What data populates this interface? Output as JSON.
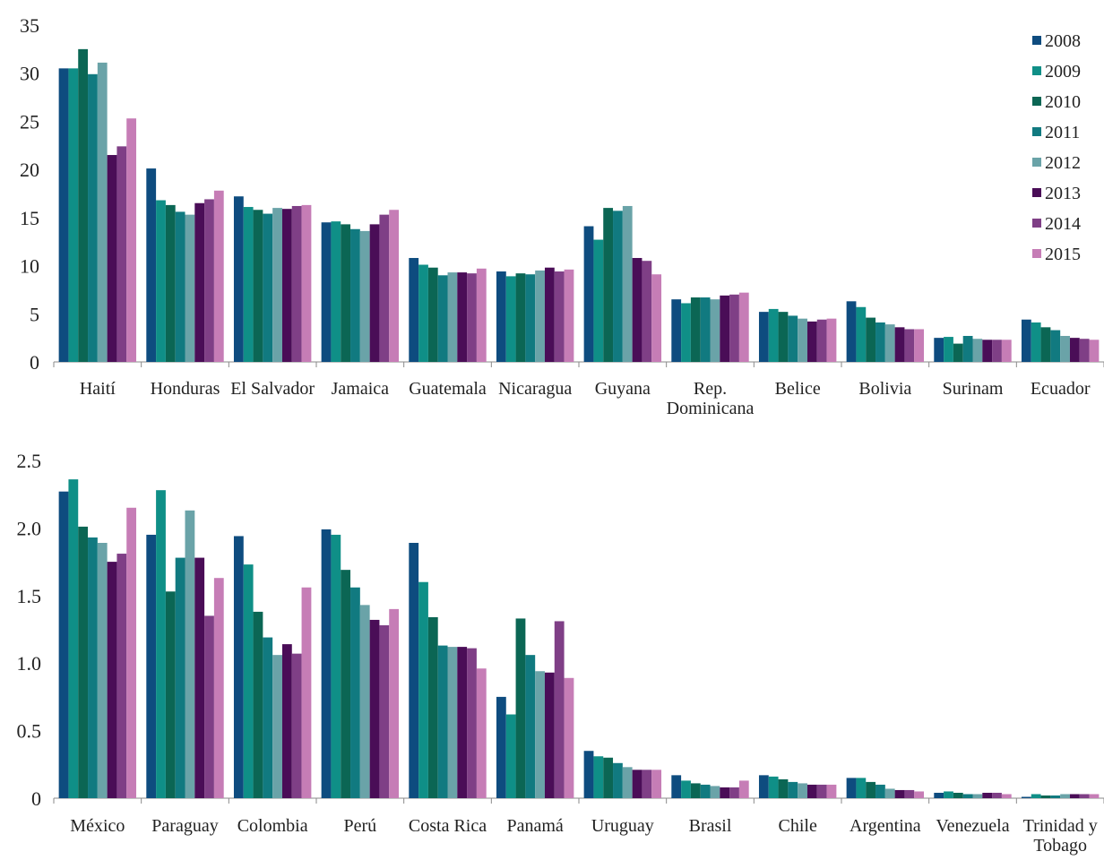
{
  "colors": [
    "#0e4c7f",
    "#0f8f87",
    "#0b6654",
    "#117a80",
    "#6aa3a8",
    "#4a0d57",
    "#7f3f86",
    "#c67db6"
  ],
  "chart_data": [
    {
      "type": "bar",
      "title": "",
      "xlabel": "",
      "ylabel": "",
      "ylim": [
        0,
        35
      ],
      "yticks": [
        "0",
        "5",
        "10",
        "15",
        "20",
        "25",
        "30",
        "35"
      ],
      "legend_position": "top-right",
      "categories": [
        [
          "Haití"
        ],
        [
          "Honduras"
        ],
        [
          "El Salvador"
        ],
        [
          "Jamaica"
        ],
        [
          "Guatemala"
        ],
        [
          "Nicaragua"
        ],
        [
          "Guyana"
        ],
        [
          "Rep.",
          "Dominicana"
        ],
        [
          "Belice"
        ],
        [
          "Bolivia"
        ],
        [
          "Surinam"
        ],
        [
          "Ecuador"
        ]
      ],
      "series": [
        {
          "name": "2008",
          "values": [
            30.5,
            20.1,
            17.2,
            14.5,
            10.8,
            9.4,
            14.1,
            6.5,
            5.2,
            6.3,
            2.5,
            4.4
          ]
        },
        {
          "name": "2009",
          "values": [
            30.5,
            16.8,
            16.1,
            14.6,
            10.1,
            8.9,
            12.7,
            6.1,
            5.5,
            5.7,
            2.6,
            4.1
          ]
        },
        {
          "name": "2010",
          "values": [
            32.5,
            16.3,
            15.8,
            14.3,
            9.8,
            9.2,
            16.0,
            6.7,
            5.2,
            4.6,
            1.9,
            3.6
          ]
        },
        {
          "name": "2011",
          "values": [
            29.9,
            15.6,
            15.4,
            13.8,
            9.0,
            9.1,
            15.7,
            6.7,
            4.8,
            4.1,
            2.7,
            3.3
          ]
        },
        {
          "name": "2012",
          "values": [
            31.1,
            15.3,
            16.0,
            13.6,
            9.3,
            9.5,
            16.2,
            6.5,
            4.5,
            3.9,
            2.4,
            2.7
          ]
        },
        {
          "name": "2013",
          "values": [
            21.5,
            16.5,
            15.9,
            14.3,
            9.3,
            9.8,
            10.8,
            6.9,
            4.2,
            3.6,
            2.3,
            2.5
          ]
        },
        {
          "name": "2014",
          "values": [
            22.4,
            16.9,
            16.2,
            15.3,
            9.2,
            9.4,
            10.5,
            7.0,
            4.4,
            3.4,
            2.3,
            2.4
          ]
        },
        {
          "name": "2015",
          "values": [
            25.3,
            17.8,
            16.3,
            15.8,
            9.7,
            9.6,
            9.1,
            7.2,
            4.5,
            3.4,
            2.3,
            2.3
          ]
        }
      ]
    },
    {
      "type": "bar",
      "title": "",
      "xlabel": "",
      "ylabel": "",
      "ylim": [
        0,
        2.5
      ],
      "yticks": [
        "0",
        "0.5",
        "1.0",
        "1.5",
        "2.0",
        "2.5"
      ],
      "categories": [
        [
          "México"
        ],
        [
          "Paraguay"
        ],
        [
          "Colombia"
        ],
        [
          "Perú"
        ],
        [
          "Costa Rica"
        ],
        [
          "Panamá"
        ],
        [
          "Uruguay"
        ],
        [
          "Brasil"
        ],
        [
          "Chile"
        ],
        [
          "Argentina"
        ],
        [
          "Venezuela"
        ],
        [
          "Trinidad y",
          "Tobago"
        ]
      ],
      "series": [
        {
          "name": "2008",
          "values": [
            2.27,
            1.95,
            1.94,
            1.99,
            1.89,
            0.75,
            0.35,
            0.17,
            0.17,
            0.15,
            0.04,
            0.01
          ]
        },
        {
          "name": "2009",
          "values": [
            2.36,
            2.28,
            1.73,
            1.95,
            1.6,
            0.62,
            0.31,
            0.13,
            0.16,
            0.15,
            0.05,
            0.03
          ]
        },
        {
          "name": "2010",
          "values": [
            2.01,
            1.53,
            1.38,
            1.69,
            1.34,
            1.33,
            0.3,
            0.11,
            0.14,
            0.12,
            0.04,
            0.02
          ]
        },
        {
          "name": "2011",
          "values": [
            1.93,
            1.78,
            1.19,
            1.56,
            1.13,
            1.06,
            0.26,
            0.1,
            0.12,
            0.1,
            0.03,
            0.02
          ]
        },
        {
          "name": "2012",
          "values": [
            1.89,
            2.13,
            1.06,
            1.43,
            1.12,
            0.94,
            0.23,
            0.09,
            0.11,
            0.07,
            0.03,
            0.03
          ]
        },
        {
          "name": "2013",
          "values": [
            1.75,
            1.78,
            1.14,
            1.32,
            1.12,
            0.93,
            0.21,
            0.08,
            0.1,
            0.06,
            0.04,
            0.03
          ]
        },
        {
          "name": "2014",
          "values": [
            1.81,
            1.35,
            1.07,
            1.28,
            1.11,
            1.31,
            0.21,
            0.08,
            0.1,
            0.06,
            0.04,
            0.03
          ]
        },
        {
          "name": "2015",
          "values": [
            2.15,
            1.63,
            1.56,
            1.4,
            0.96,
            0.89,
            0.21,
            0.13,
            0.1,
            0.05,
            0.03,
            0.03
          ]
        }
      ]
    }
  ]
}
